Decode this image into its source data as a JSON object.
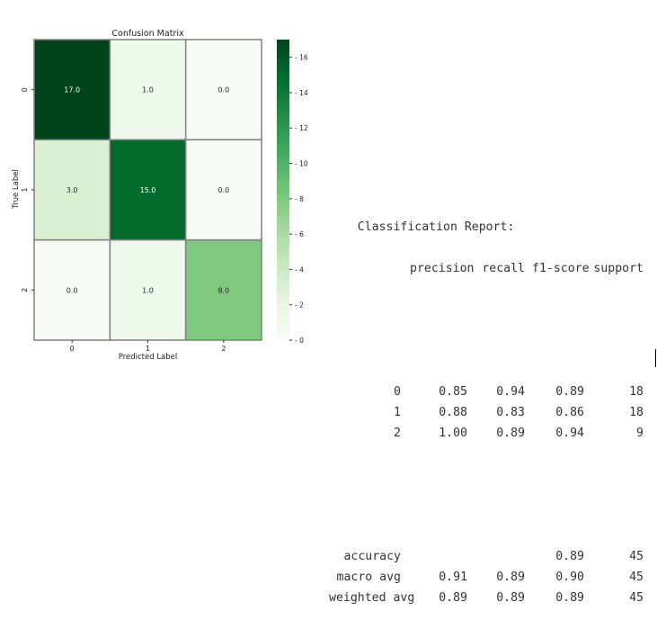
{
  "chart_data": {
    "type": "heatmap",
    "title": "Confusion Matrix",
    "xlabel": "Predicted Label",
    "ylabel": "True Label",
    "x_tick_labels": [
      "0",
      "1",
      "2"
    ],
    "y_tick_labels": [
      "0",
      "1",
      "2"
    ],
    "matrix": [
      [
        17,
        1,
        0
      ],
      [
        3,
        15,
        0
      ],
      [
        0,
        1,
        8
      ]
    ],
    "cell_labels": [
      [
        "17.0",
        "1.0",
        "0.0"
      ],
      [
        "3.0",
        "15.0",
        "0.0"
      ],
      [
        "0.0",
        "1.0",
        "8.0"
      ]
    ],
    "colormap": "Greens",
    "vmin": 0,
    "vmax": 17,
    "colorbar_ticks": [
      0,
      2,
      4,
      6,
      8,
      10,
      12,
      14,
      16
    ],
    "colors": {
      "low": "#f7fcf5",
      "high": "#00441b",
      "grid": "#808080"
    }
  },
  "report": {
    "title": "Classification Report:",
    "columns": [
      "precision",
      "recall",
      "f1-score",
      "support"
    ],
    "rows": [
      {
        "label": "0",
        "precision": "0.85",
        "recall": "0.94",
        "f1": "0.89",
        "support": "18"
      },
      {
        "label": "1",
        "precision": "0.88",
        "recall": "0.83",
        "f1": "0.86",
        "support": "18"
      },
      {
        "label": "2",
        "precision": "1.00",
        "recall": "0.89",
        "f1": "0.94",
        "support": "9"
      }
    ],
    "summary": [
      {
        "label": "accuracy",
        "precision": "",
        "recall": "",
        "f1": "0.89",
        "support": "45"
      },
      {
        "label": "macro avg",
        "precision": "0.91",
        "recall": "0.89",
        "f1": "0.90",
        "support": "45"
      },
      {
        "label": "weighted avg",
        "precision": "0.89",
        "recall": "0.89",
        "f1": "0.89",
        "support": "45"
      }
    ]
  }
}
